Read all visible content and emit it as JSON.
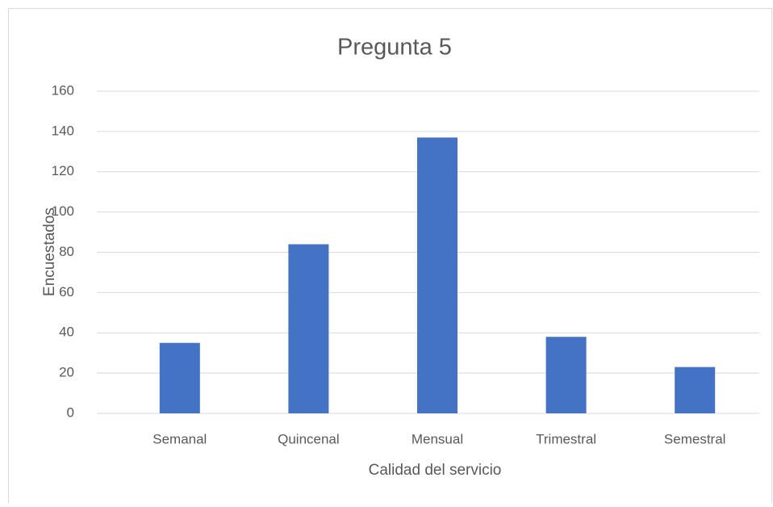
{
  "chart_data": {
    "type": "bar",
    "title": "Pregunta 5",
    "x_label": "Calidad del servicio",
    "y_label": "Encuestados",
    "categories": [
      "Semanal",
      "Quincenal",
      "Mensual",
      "Trimestral",
      "Semestral"
    ],
    "values": [
      35,
      84,
      137,
      38,
      23
    ],
    "color": "#4472c4",
    "ylim": [
      0,
      160
    ],
    "yticks": [
      0,
      20,
      40,
      60,
      80,
      100,
      120,
      140,
      160
    ],
    "grid": true
  }
}
